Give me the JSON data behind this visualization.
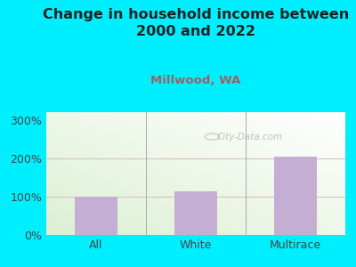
{
  "title": "Change in household income between\n2000 and 2022",
  "subtitle": "Millwood, WA",
  "categories": [
    "All",
    "White",
    "Multirace"
  ],
  "values": [
    100,
    113,
    205
  ],
  "bar_color": "#c4aed4",
  "background_outer": "#00efff",
  "title_fontsize": 11.5,
  "title_color": "#222222",
  "subtitle_fontsize": 9.5,
  "subtitle_color": "#a06060",
  "tick_label_fontsize": 9,
  "axis_label_color": "#444444",
  "ylim": [
    0,
    320
  ],
  "yticks": [
    0,
    100,
    200,
    300
  ],
  "ytick_labels": [
    "0%",
    "100%",
    "200%",
    "300%"
  ],
  "grid_color": "#ddbebe",
  "watermark": "City-Data.com"
}
